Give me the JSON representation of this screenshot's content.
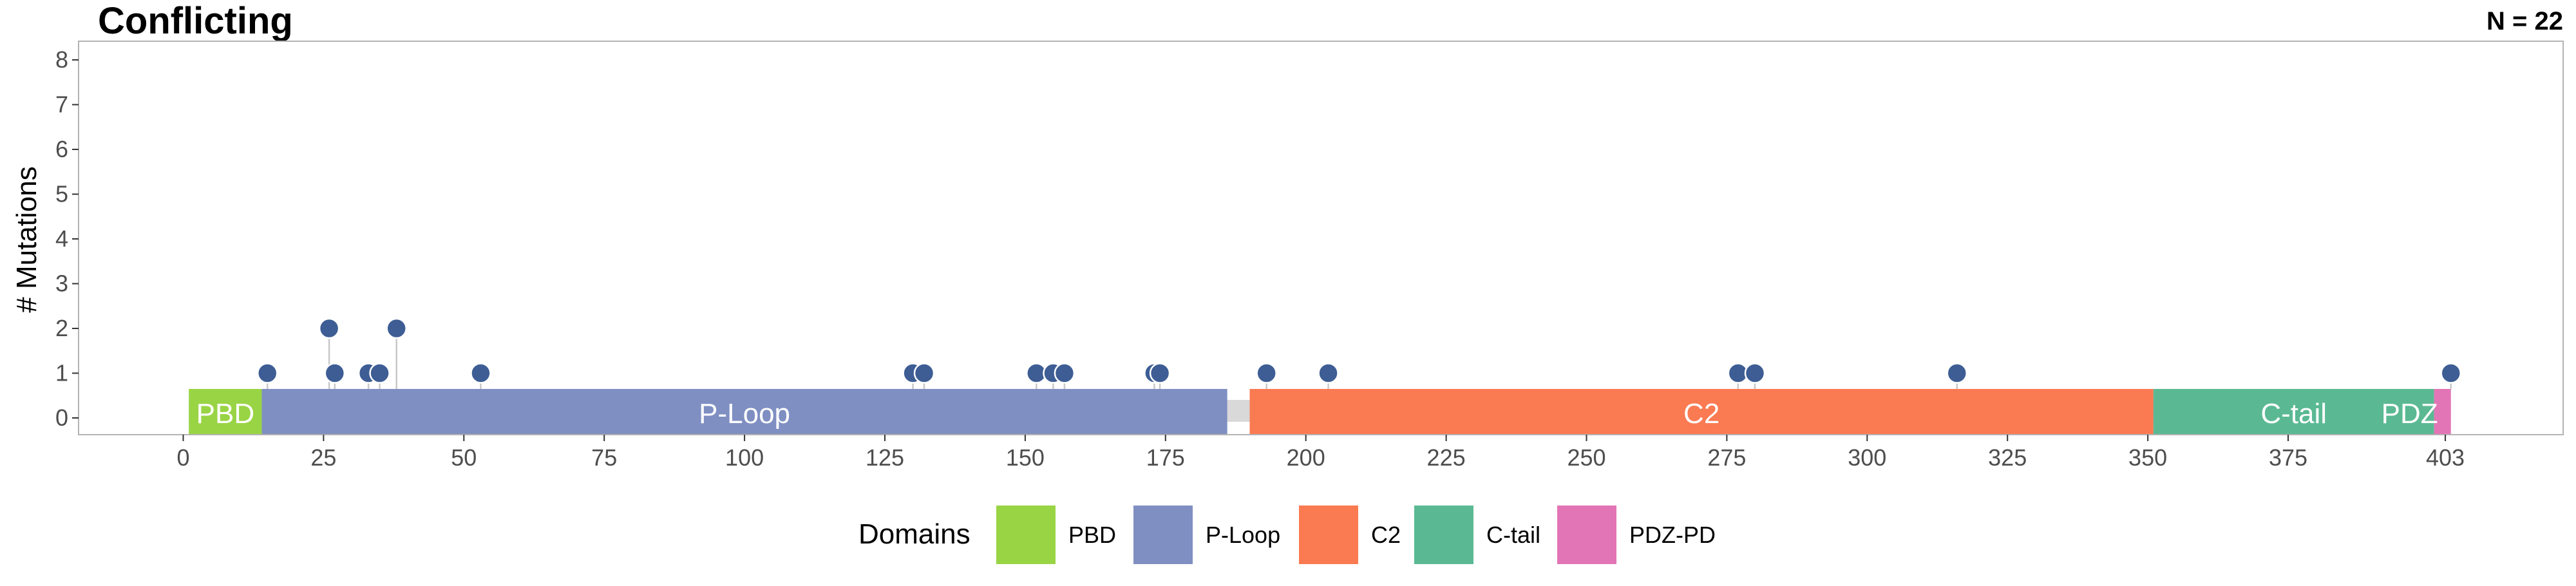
{
  "chart_data": {
    "type": "lollipop",
    "title": "Conflicting",
    "n_label": "N = 22",
    "ylabel": "# Mutations",
    "xlabel": "",
    "ylim": [
      0,
      8
    ],
    "xlim": [
      0,
      403
    ],
    "y_ticks": [
      0,
      1,
      2,
      3,
      4,
      5,
      6,
      7,
      8
    ],
    "x_ticks": [
      "0",
      "25",
      "50",
      "75",
      "100",
      "125",
      "150",
      "175",
      "200",
      "225",
      "250",
      "275",
      "300",
      "325",
      "350",
      "375",
      "403"
    ],
    "x_tick_values": [
      0,
      25,
      50,
      75,
      100,
      125,
      150,
      175,
      200,
      225,
      250,
      275,
      300,
      325,
      350,
      375,
      403
    ],
    "protein_length": 403,
    "domains": [
      {
        "name": "PBD",
        "label": "PBD",
        "start": 1,
        "end": 13,
        "color": "#99d444"
      },
      {
        "name": "P-Loop",
        "label": "P-Loop",
        "start": 14,
        "end": 185,
        "color": "#7f8fc2"
      },
      {
        "name": "C2",
        "label": "C2",
        "start": 190,
        "end": 350,
        "color": "#fa7a52"
      },
      {
        "name": "C-tail",
        "label": "C-tail",
        "start": 351,
        "end": 400,
        "color": "#5ab993"
      },
      {
        "name": "PDZ-PD",
        "label": "PDZ",
        "start": 401,
        "end": 403,
        "color": "#e275b6"
      }
    ],
    "backbone_color": "#d9d9d9",
    "point_color": "#3d5d94",
    "mutations": [
      {
        "pos": 15,
        "count": 1
      },
      {
        "pos": 26,
        "count": 2
      },
      {
        "pos": 27,
        "count": 1
      },
      {
        "pos": 33,
        "count": 1
      },
      {
        "pos": 35,
        "count": 1
      },
      {
        "pos": 38,
        "count": 2
      },
      {
        "pos": 53,
        "count": 1
      },
      {
        "pos": 130,
        "count": 1
      },
      {
        "pos": 132,
        "count": 1
      },
      {
        "pos": 152,
        "count": 1
      },
      {
        "pos": 155,
        "count": 1
      },
      {
        "pos": 157,
        "count": 1
      },
      {
        "pos": 173,
        "count": 1
      },
      {
        "pos": 174,
        "count": 1
      },
      {
        "pos": 193,
        "count": 1
      },
      {
        "pos": 204,
        "count": 1
      },
      {
        "pos": 277,
        "count": 1
      },
      {
        "pos": 280,
        "count": 1
      },
      {
        "pos": 316,
        "count": 1
      },
      {
        "pos": 404,
        "count": 1
      }
    ],
    "legend": {
      "title": "Domains",
      "placement": "bottom",
      "items": [
        {
          "label": "PBD",
          "color": "#99d444"
        },
        {
          "label": "P-Loop",
          "color": "#7f8fc2"
        },
        {
          "label": "C2",
          "color": "#fa7a52"
        },
        {
          "label": "C-tail",
          "color": "#5ab993"
        },
        {
          "label": "PDZ-PD",
          "color": "#e275b6"
        }
      ]
    },
    "grid": false
  }
}
